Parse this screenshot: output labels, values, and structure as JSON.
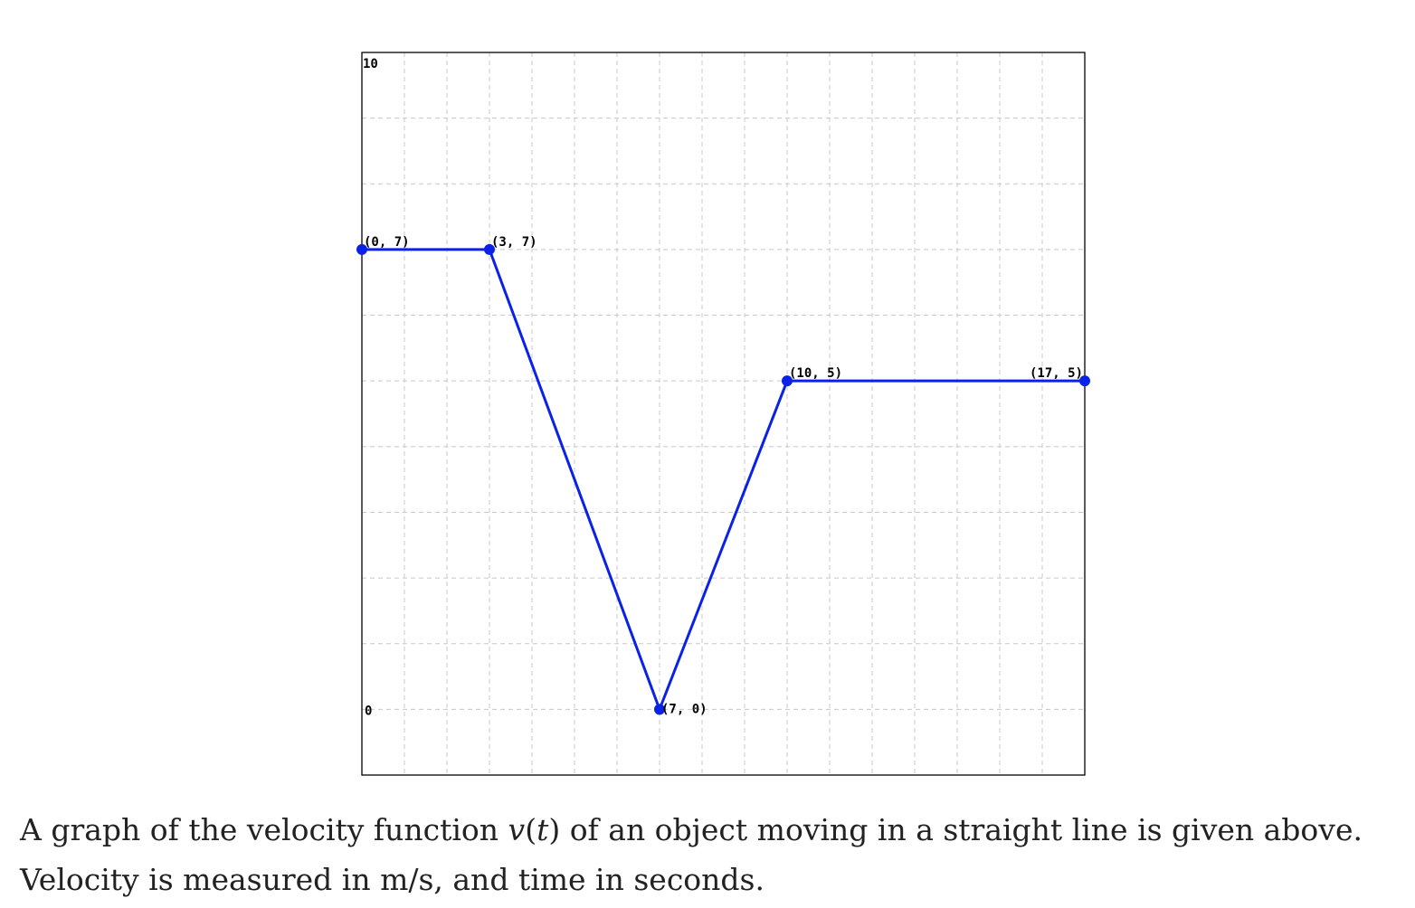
{
  "chart_data": {
    "type": "line",
    "x": [
      0,
      3,
      7,
      10,
      17
    ],
    "y": [
      7,
      7,
      0,
      5,
      5
    ],
    "point_labels": [
      "(0, 7)",
      "(3, 7)",
      "(7, 0)",
      "(10, 5)",
      "(17, 5)"
    ],
    "xlim": [
      0,
      17
    ],
    "ylim": [
      0,
      10
    ],
    "y_tick_labels": [
      "10",
      "0"
    ],
    "grid": true,
    "line_color": "#0a22e6",
    "title": "",
    "xlabel": "",
    "ylabel": ""
  },
  "caption": {
    "text_before": "A graph of the velocity function ",
    "fn": "v",
    "paren_open": "(",
    "var": "t",
    "paren_close": ")",
    "text_after": " of an object moving in a straight line is given above.",
    "line2": "Velocity is measured in m/s, and time in seconds."
  }
}
